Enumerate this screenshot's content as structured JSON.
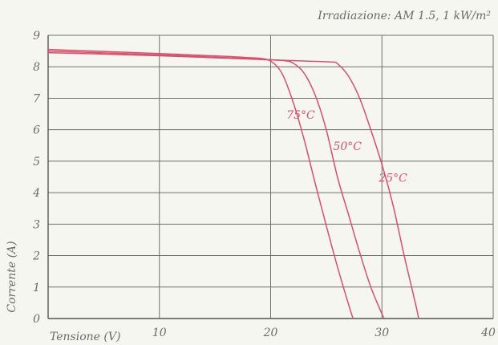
{
  "chart_data": {
    "type": "line",
    "subtitle": "Irradiazione: AM 1.5, 1 kW/m²",
    "xlabel": "Tensione (V)",
    "ylabel": "Corrente (A)",
    "xlim": [
      0,
      40
    ],
    "ylim": [
      0,
      9
    ],
    "xticks": [
      "10",
      "20",
      "30",
      "40"
    ],
    "yticks": [
      "0",
      "1",
      "2",
      "3",
      "4",
      "5",
      "6",
      "7",
      "8",
      "9"
    ],
    "grid": true,
    "series": [
      {
        "name": "75°C",
        "color": "#d94f6e",
        "points": [
          [
            0,
            8.55
          ],
          [
            10,
            8.42
          ],
          [
            16,
            8.33
          ],
          [
            18,
            8.29
          ],
          [
            19,
            8.27
          ],
          [
            20,
            8.18
          ],
          [
            21,
            7.8
          ],
          [
            22,
            6.9
          ],
          [
            23,
            5.7
          ],
          [
            24,
            4.3
          ],
          [
            25,
            2.95
          ],
          [
            26,
            1.65
          ],
          [
            27,
            0.45
          ],
          [
            27.4,
            0
          ]
        ]
      },
      {
        "name": "50°C",
        "color": "#d94f6e",
        "points": [
          [
            0,
            8.5
          ],
          [
            10,
            8.38
          ],
          [
            18,
            8.26
          ],
          [
            21,
            8.2
          ],
          [
            22,
            8.12
          ],
          [
            23,
            7.8
          ],
          [
            24,
            7.1
          ],
          [
            25,
            6.0
          ],
          [
            26,
            4.5
          ],
          [
            27,
            3.3
          ],
          [
            28,
            2.1
          ],
          [
            29,
            1.0
          ],
          [
            30,
            0.15
          ],
          [
            30.2,
            0
          ]
        ]
      },
      {
        "name": "25°C",
        "color": "#d94f6e",
        "points": [
          [
            0,
            8.45
          ],
          [
            10,
            8.35
          ],
          [
            20,
            8.22
          ],
          [
            24,
            8.17
          ],
          [
            25.5,
            8.15
          ],
          [
            26,
            8.1
          ],
          [
            27,
            7.7
          ],
          [
            28,
            7.0
          ],
          [
            29,
            6.0
          ],
          [
            30,
            4.9
          ],
          [
            31,
            3.6
          ],
          [
            32,
            2.0
          ],
          [
            33,
            0.5
          ],
          [
            33.3,
            0
          ]
        ]
      }
    ],
    "annotations": [
      {
        "text": "75°C",
        "x": 22.7,
        "y": 6.35,
        "series": "75°C"
      },
      {
        "text": "50°C",
        "x": 26.9,
        "y": 5.35,
        "series": "50°C"
      },
      {
        "text": "25°C",
        "x": 31.0,
        "y": 4.35,
        "series": "25°C"
      }
    ]
  }
}
